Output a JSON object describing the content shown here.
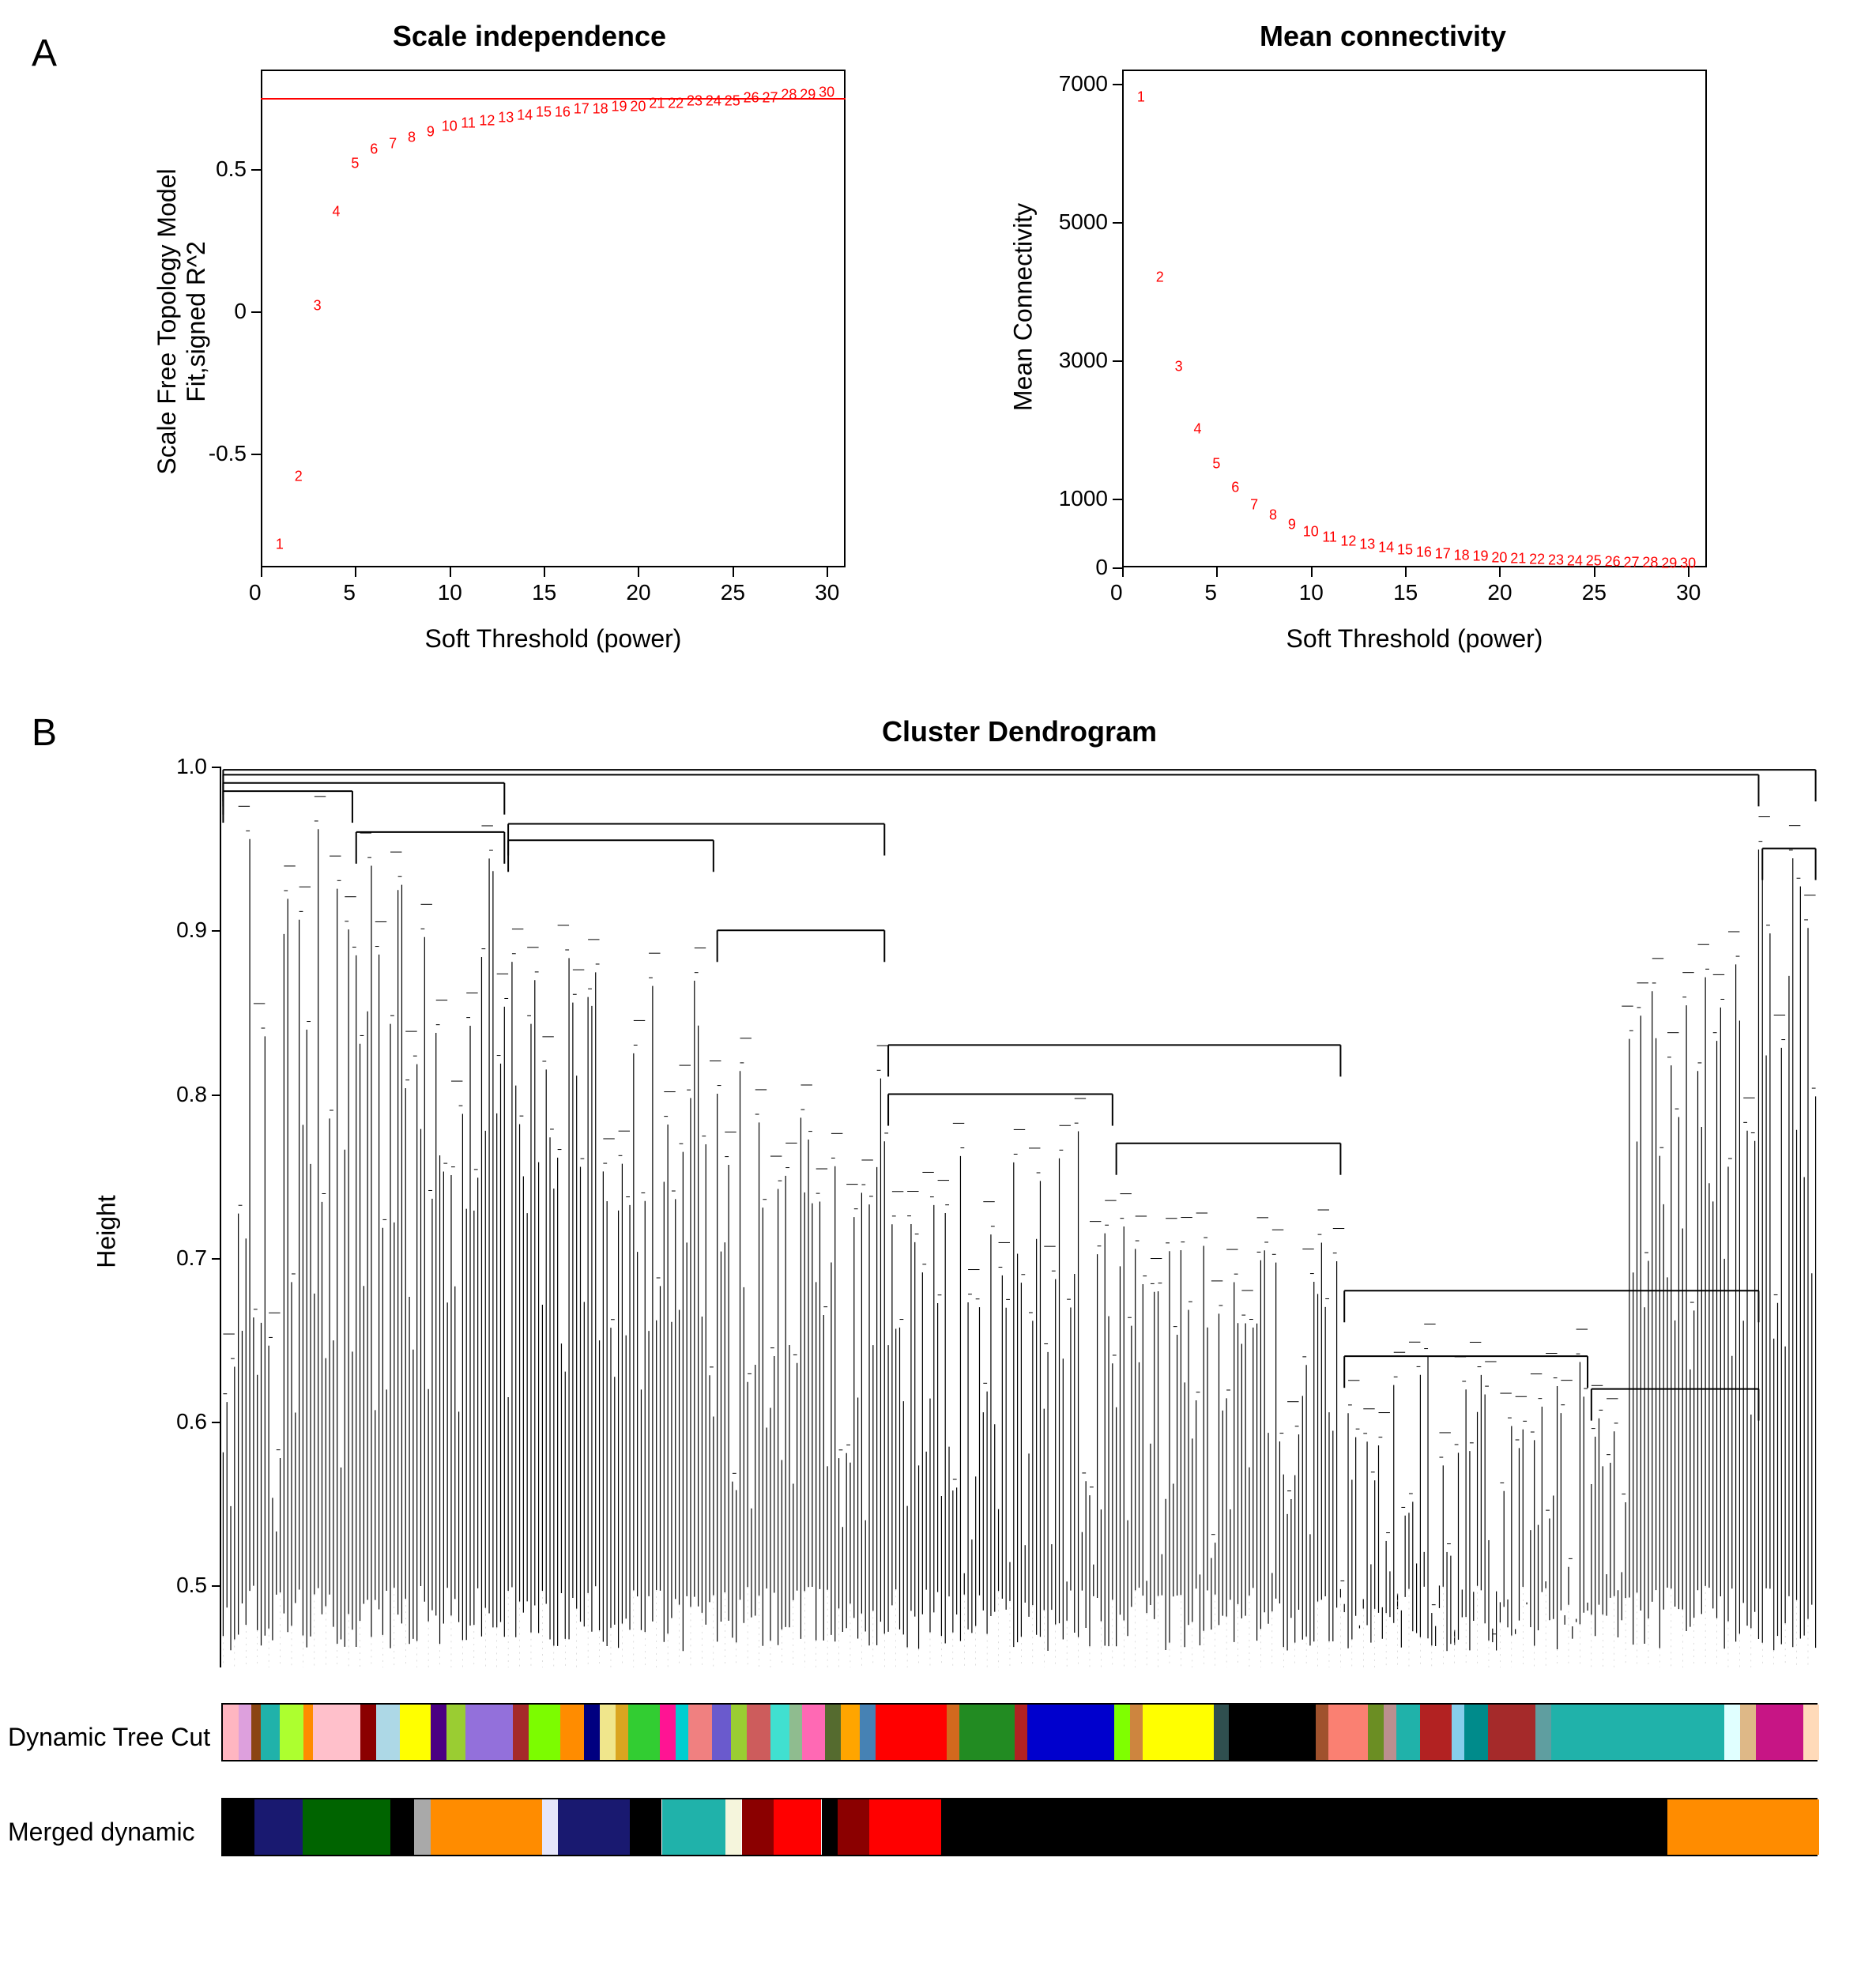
{
  "panelA": {
    "label": "A",
    "scatterLeft": {
      "title": "Scale independence",
      "xlabel": "Soft Threshold (power)",
      "ylabel": "Scale Free Topology Model Fit,signed R^2",
      "xlim": [
        0,
        31
      ],
      "ylim": [
        -0.9,
        0.85
      ],
      "xticks": [
        0,
        5,
        10,
        15,
        20,
        25,
        30
      ],
      "yticks": [
        -0.5,
        0.0,
        0.5
      ],
      "hline_y": 0.75,
      "hline_color": "#ff0000",
      "point_color": "#ff0000",
      "point_fontsize": 18,
      "x": [
        1,
        2,
        3,
        4,
        5,
        6,
        7,
        8,
        9,
        10,
        11,
        12,
        13,
        14,
        15,
        16,
        17,
        18,
        19,
        20,
        21,
        22,
        23,
        24,
        25,
        26,
        27,
        28,
        29,
        30
      ],
      "y": [
        -0.82,
        -0.58,
        0.02,
        0.35,
        0.52,
        0.57,
        0.59,
        0.61,
        0.63,
        0.65,
        0.66,
        0.67,
        0.68,
        0.69,
        0.7,
        0.7,
        0.71,
        0.71,
        0.72,
        0.72,
        0.73,
        0.73,
        0.74,
        0.74,
        0.74,
        0.75,
        0.75,
        0.76,
        0.76,
        0.77
      ]
    },
    "scatterRight": {
      "title": "Mean connectivity",
      "xlabel": "Soft Threshold (power)",
      "ylabel": "Mean Connectivity",
      "xlim": [
        0,
        31
      ],
      "ylim": [
        0,
        7200
      ],
      "xticks": [
        0,
        5,
        10,
        15,
        20,
        25,
        30
      ],
      "yticks": [
        0,
        1000,
        3000,
        5000,
        7000
      ],
      "point_color": "#ff0000",
      "point_fontsize": 18,
      "x": [
        1,
        2,
        3,
        4,
        5,
        6,
        7,
        8,
        9,
        10,
        11,
        12,
        13,
        14,
        15,
        16,
        17,
        18,
        19,
        20,
        21,
        22,
        23,
        24,
        25,
        26,
        27,
        28,
        29,
        30
      ],
      "y": [
        6800,
        4200,
        2900,
        2000,
        1500,
        1150,
        900,
        750,
        620,
        520,
        440,
        380,
        330,
        290,
        250,
        220,
        195,
        175,
        155,
        140,
        125,
        115,
        105,
        95,
        88,
        80,
        73,
        67,
        62,
        58
      ]
    }
  },
  "panelB": {
    "label": "B",
    "title": "Cluster Dendrogram",
    "ylabel": "Height",
    "ylim": [
      0.45,
      1.0
    ],
    "yticks": [
      0.5,
      0.6,
      0.7,
      0.8,
      0.9,
      1.0
    ],
    "row1_label": "Dynamic Tree Cut",
    "row2_label": "Merged dynamic",
    "dendro_color": "#000000",
    "background": "#ffffff",
    "colorbar1": [
      {
        "w": 0.01,
        "c": "#ffb6c1"
      },
      {
        "w": 0.008,
        "c": "#dda0dd"
      },
      {
        "w": 0.006,
        "c": "#8b4513"
      },
      {
        "w": 0.012,
        "c": "#20b2aa"
      },
      {
        "w": 0.015,
        "c": "#adff2f"
      },
      {
        "w": 0.006,
        "c": "#ff8c00"
      },
      {
        "w": 0.03,
        "c": "#ffc0cb"
      },
      {
        "w": 0.01,
        "c": "#8b0000"
      },
      {
        "w": 0.015,
        "c": "#add8e6"
      },
      {
        "w": 0.02,
        "c": "#ffff00"
      },
      {
        "w": 0.01,
        "c": "#4b0082"
      },
      {
        "w": 0.012,
        "c": "#9acd32"
      },
      {
        "w": 0.03,
        "c": "#9370db"
      },
      {
        "w": 0.01,
        "c": "#a52a2a"
      },
      {
        "w": 0.02,
        "c": "#7cfc00"
      },
      {
        "w": 0.015,
        "c": "#ff8c00"
      },
      {
        "w": 0.01,
        "c": "#000080"
      },
      {
        "w": 0.01,
        "c": "#f0e68c"
      },
      {
        "w": 0.008,
        "c": "#daa520"
      },
      {
        "w": 0.02,
        "c": "#32cd32"
      },
      {
        "w": 0.01,
        "c": "#ff1493"
      },
      {
        "w": 0.008,
        "c": "#00ced1"
      },
      {
        "w": 0.015,
        "c": "#f08080"
      },
      {
        "w": 0.012,
        "c": "#6a5acd"
      },
      {
        "w": 0.01,
        "c": "#9acd32"
      },
      {
        "w": 0.015,
        "c": "#cd5c5c"
      },
      {
        "w": 0.012,
        "c": "#40e0d0"
      },
      {
        "w": 0.008,
        "c": "#8fbc8f"
      },
      {
        "w": 0.015,
        "c": "#ff69b4"
      },
      {
        "w": 0.01,
        "c": "#556b2f"
      },
      {
        "w": 0.012,
        "c": "#ffa500"
      },
      {
        "w": 0.01,
        "c": "#4682b4"
      },
      {
        "w": 0.045,
        "c": "#ff0000"
      },
      {
        "w": 0.008,
        "c": "#d2691e"
      },
      {
        "w": 0.035,
        "c": "#228b22"
      },
      {
        "w": 0.008,
        "c": "#b22222"
      },
      {
        "w": 0.055,
        "c": "#0000cd"
      },
      {
        "w": 0.01,
        "c": "#7fff00"
      },
      {
        "w": 0.008,
        "c": "#cd853f"
      },
      {
        "w": 0.045,
        "c": "#ffff00"
      },
      {
        "w": 0.01,
        "c": "#2f4f4f"
      },
      {
        "w": 0.055,
        "c": "#000000"
      },
      {
        "w": 0.008,
        "c": "#a0522d"
      },
      {
        "w": 0.025,
        "c": "#fa8072"
      },
      {
        "w": 0.01,
        "c": "#6b8e23"
      },
      {
        "w": 0.008,
        "c": "#bc8f8f"
      },
      {
        "w": 0.015,
        "c": "#20b2aa"
      },
      {
        "w": 0.02,
        "c": "#b22222"
      },
      {
        "w": 0.008,
        "c": "#87ceeb"
      },
      {
        "w": 0.015,
        "c": "#008b8b"
      },
      {
        "w": 0.03,
        "c": "#a52a2a"
      },
      {
        "w": 0.01,
        "c": "#5f9ea0"
      },
      {
        "w": 0.11,
        "c": "#20b2aa"
      },
      {
        "w": 0.01,
        "c": "#e0ffff"
      },
      {
        "w": 0.01,
        "c": "#deb887"
      },
      {
        "w": 0.03,
        "c": "#c71585"
      },
      {
        "w": 0.01,
        "c": "#ffdab9"
      }
    ],
    "colorbar2": [
      {
        "w": 0.02,
        "c": "#000000"
      },
      {
        "w": 0.03,
        "c": "#191970"
      },
      {
        "w": 0.055,
        "c": "#006400"
      },
      {
        "w": 0.015,
        "c": "#000000"
      },
      {
        "w": 0.01,
        "c": "#a9a9a9"
      },
      {
        "w": 0.07,
        "c": "#ff8c00"
      },
      {
        "w": 0.01,
        "c": "#e6e6fa"
      },
      {
        "w": 0.045,
        "c": "#191970"
      },
      {
        "w": 0.02,
        "c": "#000000"
      },
      {
        "w": 0.04,
        "c": "#20b2aa"
      },
      {
        "w": 0.01,
        "c": "#f5f5dc"
      },
      {
        "w": 0.02,
        "c": "#8b0000"
      },
      {
        "w": 0.03,
        "c": "#ff0000"
      },
      {
        "w": 0.01,
        "c": "#000000"
      },
      {
        "w": 0.02,
        "c": "#8b0000"
      },
      {
        "w": 0.045,
        "c": "#ff0000"
      },
      {
        "w": 0.455,
        "c": "#000000"
      },
      {
        "w": 0.095,
        "c": "#ff8c00"
      }
    ]
  },
  "layout": {
    "title_fontsize": 36,
    "axis_label_fontsize": 32,
    "tick_fontsize": 28,
    "panel_label_fontsize": 48
  }
}
